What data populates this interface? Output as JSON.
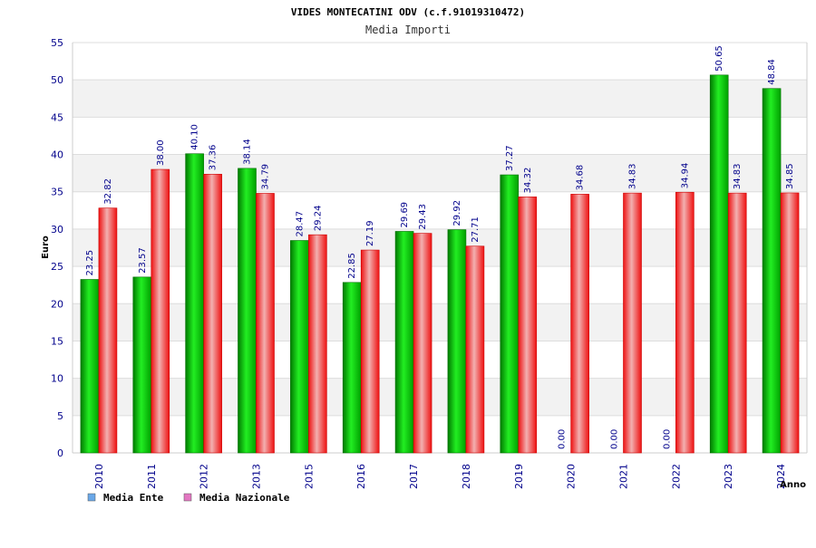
{
  "chart_data": {
    "type": "bar",
    "title": "VIDES MONTECATINI ODV (c.f.91019310472)",
    "subtitle": "Media Importi",
    "xlabel": "Anno",
    "ylabel": "Euro",
    "ylim": [
      0,
      55
    ],
    "yticks": [
      0,
      5,
      10,
      15,
      20,
      25,
      30,
      35,
      40,
      45,
      50,
      55
    ],
    "grid": true,
    "legend_position": "bottom-left",
    "categories": [
      "2010",
      "2011",
      "2012",
      "2013",
      "2015",
      "2016",
      "2017",
      "2018",
      "2019",
      "2020",
      "2021",
      "2022",
      "2023",
      "2024"
    ],
    "series": [
      {
        "name": "Media Ente",
        "bar_color": "#00bb00",
        "legend_color": "#6aa8e8",
        "values": [
          23.25,
          23.57,
          40.1,
          38.14,
          28.47,
          22.85,
          29.69,
          29.92,
          37.27,
          0.0,
          0.0,
          0.0,
          50.65,
          48.84
        ],
        "labels": [
          "23.25",
          "23.57",
          "40.10",
          "38.14",
          "28.47",
          "22.85",
          "29.69",
          "29.92",
          "37.27",
          "0.00",
          "0.00",
          "0.00",
          "50.65",
          "48.84"
        ]
      },
      {
        "name": "Media Nazionale",
        "bar_color": "#ee1111",
        "legend_color": "#e377c2",
        "values": [
          32.82,
          38.0,
          37.36,
          34.79,
          29.24,
          27.19,
          29.43,
          27.71,
          34.32,
          34.68,
          34.83,
          34.94,
          34.83,
          34.85
        ],
        "labels": [
          "32.82",
          "38.00",
          "37.36",
          "34.79",
          "29.24",
          "27.19",
          "29.43",
          "27.71",
          "34.32",
          "34.68",
          "34.83",
          "34.94",
          "34.83",
          "34.85"
        ]
      }
    ]
  }
}
